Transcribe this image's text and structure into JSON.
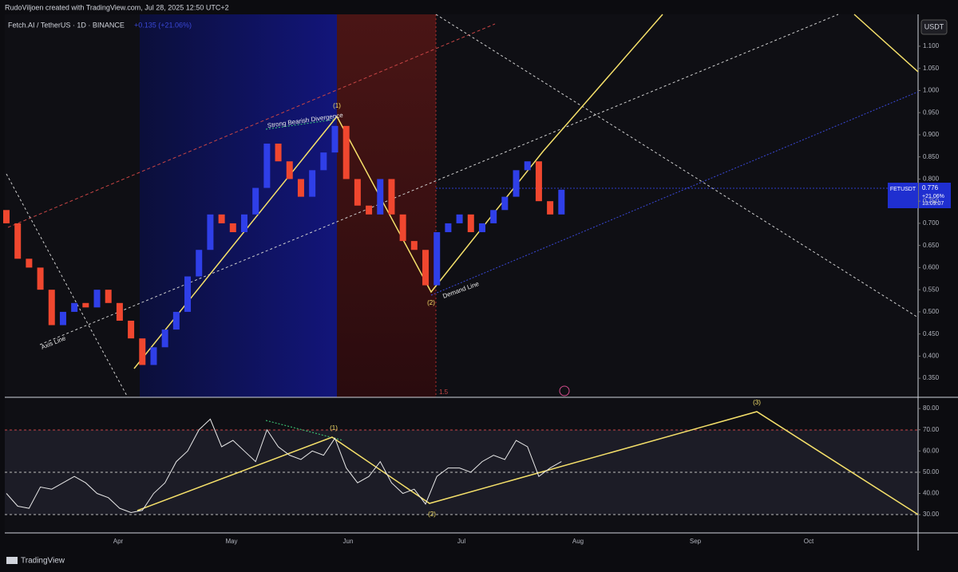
{
  "header": {
    "attribution": "RudoViljoen created with TradingView.com, Jul 28, 2025 12:50 UTC+2",
    "symbol": "Fetch.AI / TetherUS · 1D · BINANCE",
    "change": "+0.135 (+21.06%)"
  },
  "currency_button": "USDT",
  "price_chart": {
    "ylim": [
      0.307,
      1.172
    ],
    "yticks": [
      {
        "value": 1.1,
        "label": "1.100"
      },
      {
        "value": 1.05,
        "label": "1.050"
      },
      {
        "value": 1.0,
        "label": "1.000"
      },
      {
        "value": 0.95,
        "label": "0.950"
      },
      {
        "value": 0.9,
        "label": "0.900"
      },
      {
        "value": 0.85,
        "label": "0.850"
      },
      {
        "value": 0.8,
        "label": "0.800"
      },
      {
        "value": 0.75,
        "label": "0.750"
      },
      {
        "value": 0.7,
        "label": "0.700"
      },
      {
        "value": 0.65,
        "label": "0.650"
      },
      {
        "value": 0.6,
        "label": "0.600"
      },
      {
        "value": 0.55,
        "label": "0.550"
      },
      {
        "value": 0.5,
        "label": "0.500"
      },
      {
        "value": 0.45,
        "label": "0.450"
      },
      {
        "value": 0.4,
        "label": "0.400"
      },
      {
        "value": 0.35,
        "label": "0.350"
      }
    ],
    "up_color": "#2f3fe8",
    "down_color": "#f0472f",
    "open": [
      0.73,
      0.7,
      0.62,
      0.6,
      0.55,
      0.47,
      0.5,
      0.52,
      0.51,
      0.55,
      0.52,
      0.48,
      0.44,
      0.38,
      0.42,
      0.46,
      0.5,
      0.58,
      0.64,
      0.72,
      0.7,
      0.68,
      0.72,
      0.78,
      0.88,
      0.84,
      0.8,
      0.76,
      0.82,
      0.86,
      0.92,
      0.8,
      0.74,
      0.72,
      0.8,
      0.72,
      0.66,
      0.64,
      0.56,
      0.68,
      0.7,
      0.72,
      0.68,
      0.7,
      0.73,
      0.76,
      0.82,
      0.84,
      0.75,
      0.72
    ],
    "close": [
      0.7,
      0.62,
      0.6,
      0.55,
      0.47,
      0.5,
      0.52,
      0.51,
      0.55,
      0.52,
      0.48,
      0.44,
      0.38,
      0.42,
      0.46,
      0.5,
      0.58,
      0.64,
      0.72,
      0.7,
      0.68,
      0.72,
      0.78,
      0.88,
      0.84,
      0.8,
      0.76,
      0.82,
      0.86,
      0.92,
      0.8,
      0.74,
      0.72,
      0.8,
      0.72,
      0.66,
      0.64,
      0.56,
      0.68,
      0.7,
      0.72,
      0.68,
      0.7,
      0.73,
      0.76,
      0.82,
      0.84,
      0.75,
      0.72,
      0.776
    ],
    "last_price": {
      "symbol": "FETUSDT",
      "price": "0.776",
      "change": "+21.06%",
      "countdown": "13:09:07"
    },
    "annotations": {
      "wave1": "(1)",
      "wave2": "(2)",
      "divergence": "Strong Bearish Divergence",
      "demand": "Demand Line",
      "axis": "Axis Line",
      "fib": "1.5"
    }
  },
  "rsi_chart": {
    "ylim": [
      21.4,
      83.8
    ],
    "yticks": [
      {
        "value": 80,
        "label": "80.00"
      },
      {
        "value": 70,
        "label": "70.00"
      },
      {
        "value": 60,
        "label": "60.00"
      },
      {
        "value": 50,
        "label": "50.00"
      },
      {
        "value": 40,
        "label": "40.00"
      },
      {
        "value": 30,
        "label": "30.00"
      }
    ],
    "values": [
      40,
      34,
      33,
      43,
      42,
      45,
      48,
      45,
      40,
      38,
      33,
      31,
      32,
      40,
      45,
      55,
      60,
      70,
      75,
      62,
      65,
      60,
      55,
      70,
      62,
      58,
      56,
      60,
      58,
      66,
      52,
      45,
      48,
      55,
      45,
      40,
      42,
      35,
      48,
      52,
      52,
      50,
      55,
      58,
      56,
      65,
      62,
      48,
      52,
      55
    ],
    "annotations": {
      "wave1": "(1)",
      "wave2": "(2)",
      "wave3": "(3)"
    }
  },
  "time_axis": [
    "Apr",
    "May",
    "Jun",
    "Jul",
    "Aug",
    "Sep",
    "Oct"
  ],
  "footer": "TradingView"
}
